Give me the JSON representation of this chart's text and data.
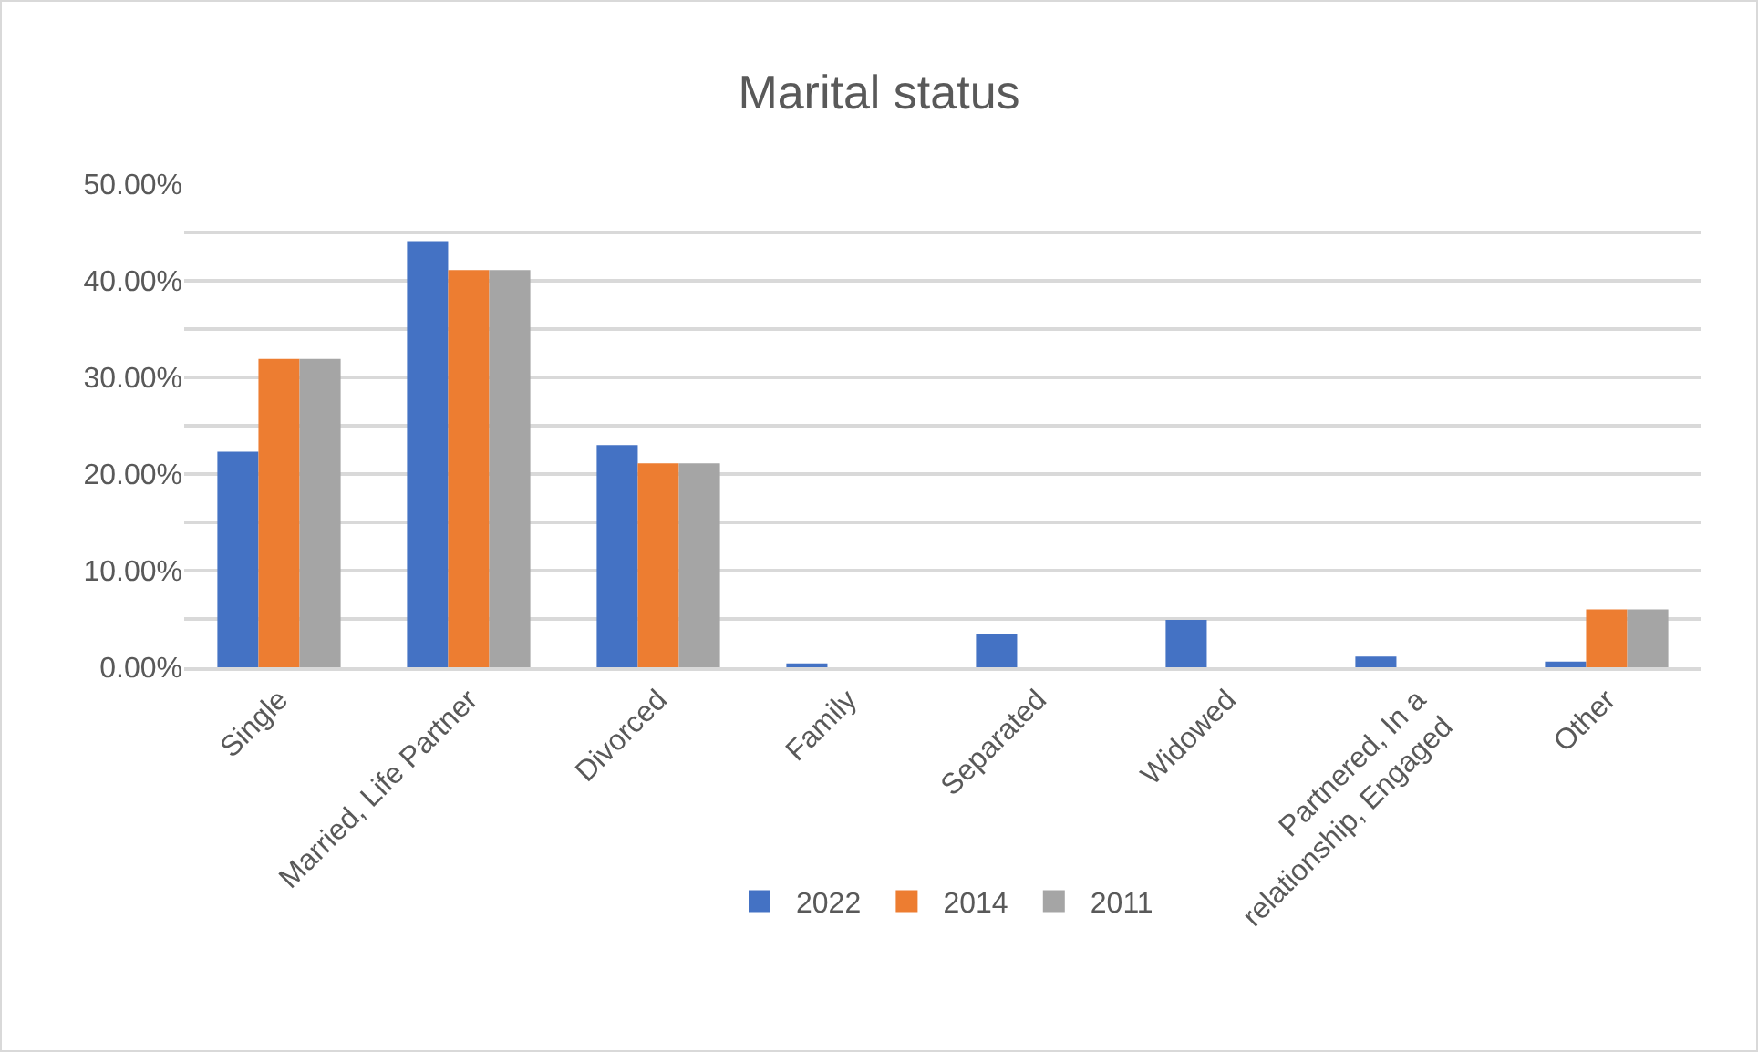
{
  "chart_data": {
    "type": "bar",
    "title": "Marital status",
    "categories": [
      "Single",
      "Married, Life Partner",
      "Divorced",
      "Family",
      "Separated",
      "Widowed",
      "Partnered, In a relationship, Engaged",
      "Other"
    ],
    "series": [
      {
        "name": "2022",
        "color": "#4472c4",
        "values": [
          22.3,
          44.1,
          23.0,
          0.4,
          3.4,
          4.9,
          1.1,
          0.6
        ]
      },
      {
        "name": "2014",
        "color": "#ed7d31",
        "values": [
          31.9,
          41.1,
          21.1,
          null,
          null,
          null,
          null,
          6.0
        ]
      },
      {
        "name": "2011",
        "color": "#a5a5a5",
        "values": [
          31.9,
          41.1,
          21.1,
          null,
          null,
          null,
          null,
          6.0
        ]
      }
    ],
    "ylim": [
      0,
      50
    ],
    "yticks": [
      {
        "value": 0,
        "label": "0.00%"
      },
      {
        "value": 5,
        "label": null
      },
      {
        "value": 10,
        "label": "10.00%"
      },
      {
        "value": 15,
        "label": null
      },
      {
        "value": 20,
        "label": "20.00%"
      },
      {
        "value": 25,
        "label": null
      },
      {
        "value": 30,
        "label": "30.00%"
      },
      {
        "value": 35,
        "label": null
      },
      {
        "value": 40,
        "label": "40.00%"
      },
      {
        "value": 45,
        "label": null
      },
      {
        "value": 50,
        "label": "50.00%"
      }
    ],
    "grid": "y",
    "legend": "bottom"
  }
}
